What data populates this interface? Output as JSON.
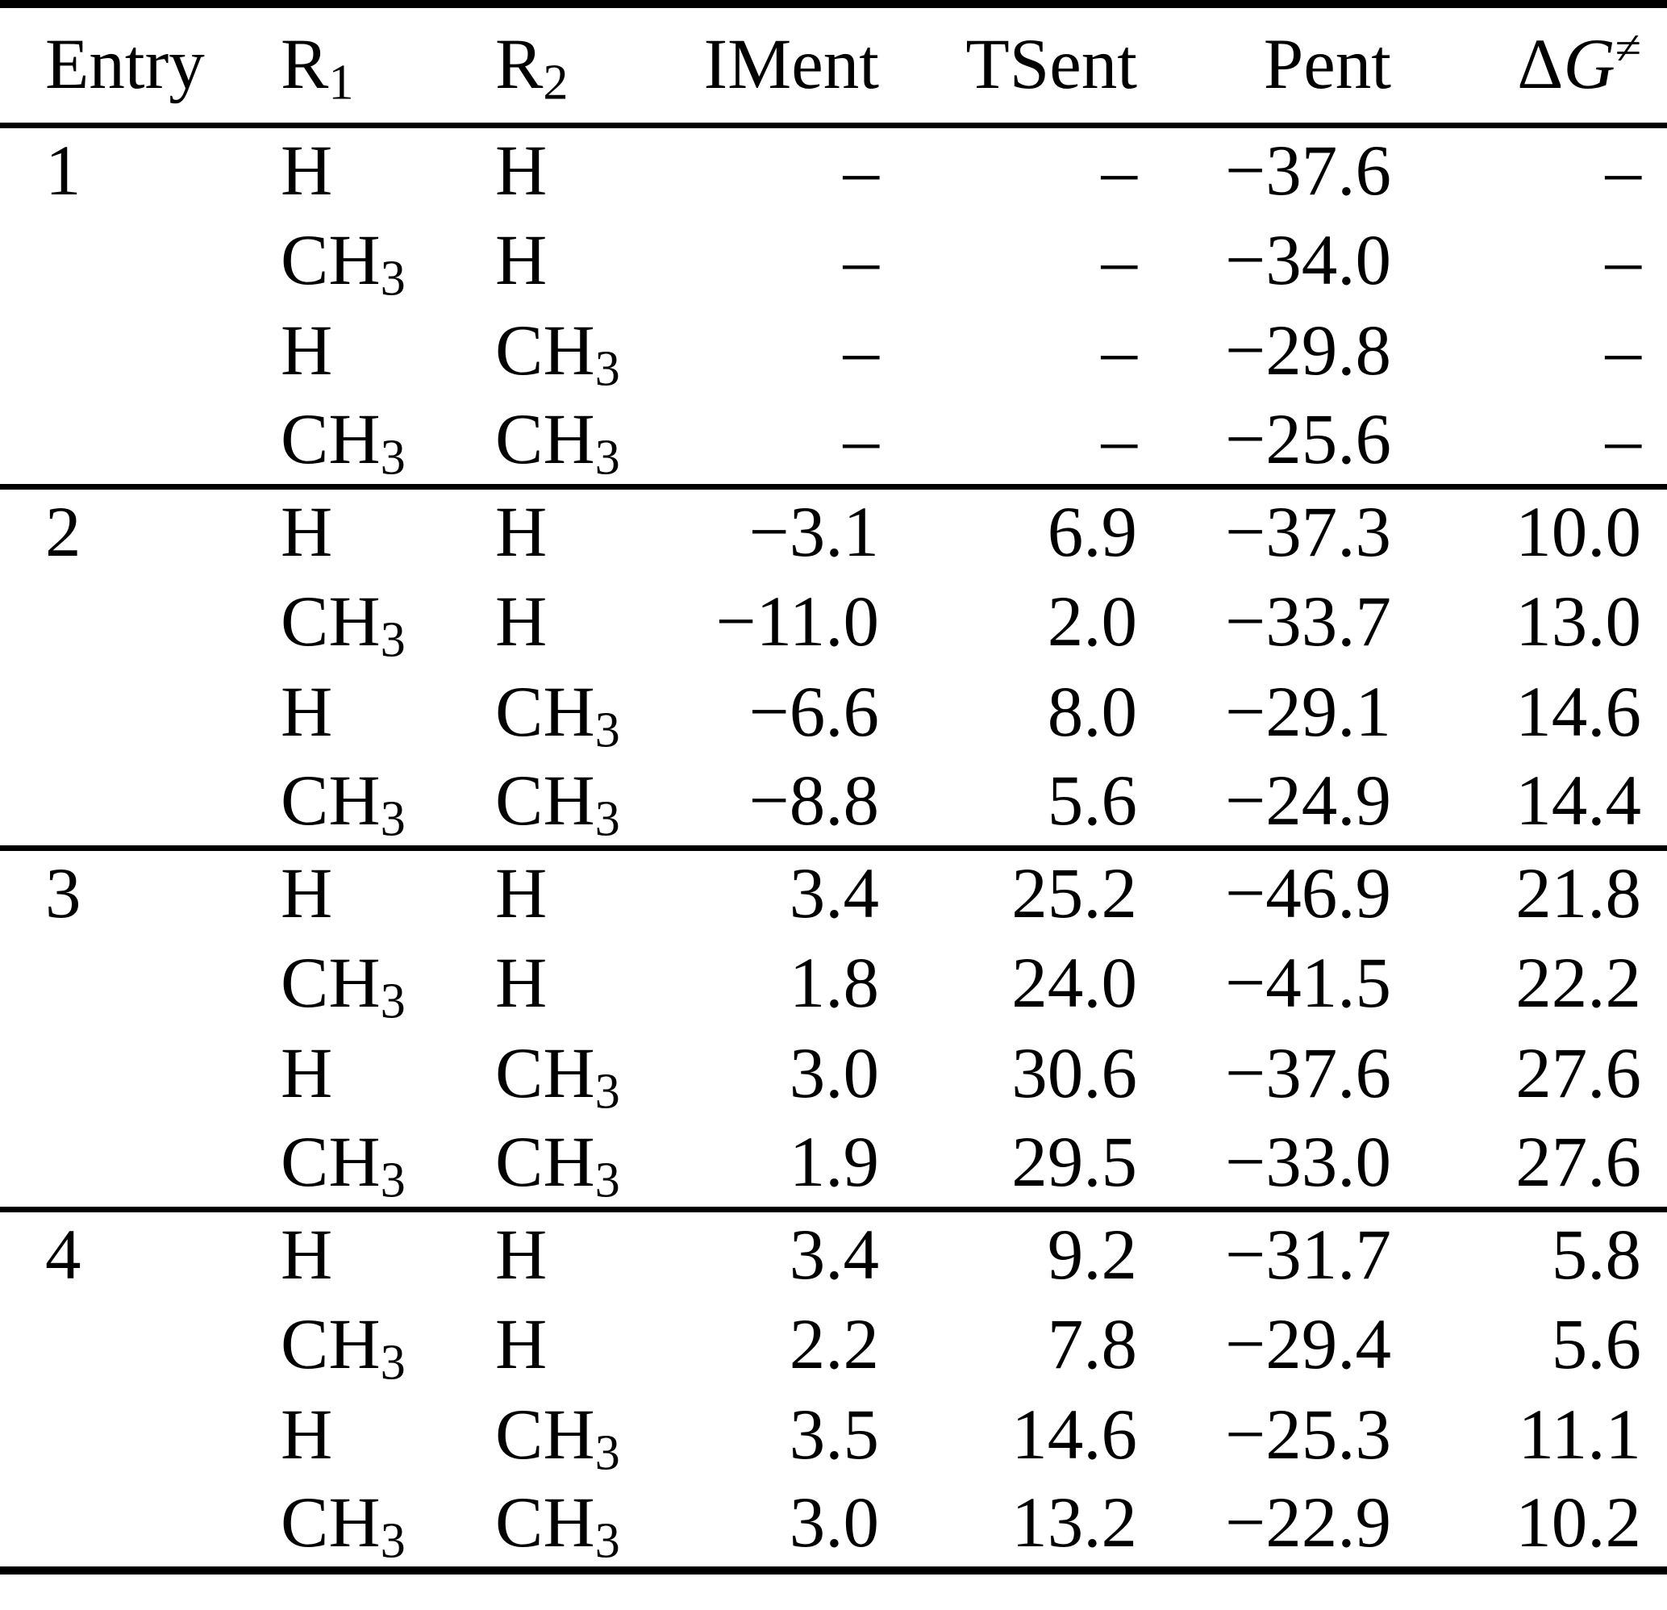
{
  "colors": {
    "text": "#000000",
    "background": "#ffffff",
    "rule": "#000000"
  },
  "table": {
    "columns": [
      {
        "key": "entry",
        "label": "Entry",
        "align": "left"
      },
      {
        "key": "r1",
        "label": "R_1",
        "align": "left"
      },
      {
        "key": "r2",
        "label": "R_2",
        "align": "left"
      },
      {
        "key": "iment",
        "label": "IMent",
        "align": "right"
      },
      {
        "key": "tsent",
        "label": "TSent",
        "align": "right"
      },
      {
        "key": "pent",
        "label": "Pent",
        "align": "right"
      },
      {
        "key": "dg",
        "label": "Δ*G*^≠",
        "align": "right"
      }
    ],
    "groups": [
      {
        "entry": "1",
        "rows": [
          {
            "r1": "H",
            "r2": "H",
            "iment": "–",
            "tsent": "–",
            "pent": "−37.6",
            "dg": "–"
          },
          {
            "r1": "CH_3",
            "r2": "H",
            "iment": "–",
            "tsent": "–",
            "pent": "−34.0",
            "dg": "–"
          },
          {
            "r1": "H",
            "r2": "CH_3",
            "iment": "–",
            "tsent": "–",
            "pent": "−29.8",
            "dg": "–"
          },
          {
            "r1": "CH_3",
            "r2": "CH_3",
            "iment": "–",
            "tsent": "–",
            "pent": "−25.6",
            "dg": "–"
          }
        ]
      },
      {
        "entry": "2",
        "rows": [
          {
            "r1": "H",
            "r2": "H",
            "iment": "−3.1",
            "tsent": "6.9",
            "pent": "−37.3",
            "dg": "10.0"
          },
          {
            "r1": "CH_3",
            "r2": "H",
            "iment": "−11.0",
            "tsent": "2.0",
            "pent": "−33.7",
            "dg": "13.0"
          },
          {
            "r1": "H",
            "r2": "CH_3",
            "iment": "−6.6",
            "tsent": "8.0",
            "pent": "−29.1",
            "dg": "14.6"
          },
          {
            "r1": "CH_3",
            "r2": "CH_3",
            "iment": "−8.8",
            "tsent": "5.6",
            "pent": "−24.9",
            "dg": "14.4"
          }
        ]
      },
      {
        "entry": "3",
        "rows": [
          {
            "r1": "H",
            "r2": "H",
            "iment": "3.4",
            "tsent": "25.2",
            "pent": "−46.9",
            "dg": "21.8"
          },
          {
            "r1": "CH_3",
            "r2": "H",
            "iment": "1.8",
            "tsent": "24.0",
            "pent": "−41.5",
            "dg": "22.2"
          },
          {
            "r1": "H",
            "r2": "CH_3",
            "iment": "3.0",
            "tsent": "30.6",
            "pent": "−37.6",
            "dg": "27.6"
          },
          {
            "r1": "CH_3",
            "r2": "CH_3",
            "iment": "1.9",
            "tsent": "29.5",
            "pent": "−33.0",
            "dg": "27.6"
          }
        ]
      },
      {
        "entry": "4",
        "rows": [
          {
            "r1": "H",
            "r2": "H",
            "iment": "3.4",
            "tsent": "9.2",
            "pent": "−31.7",
            "dg": "5.8"
          },
          {
            "r1": "CH_3",
            "r2": "H",
            "iment": "2.2",
            "tsent": "7.8",
            "pent": "−29.4",
            "dg": "5.6"
          },
          {
            "r1": "H",
            "r2": "CH_3",
            "iment": "3.5",
            "tsent": "14.6",
            "pent": "−25.3",
            "dg": "11.1"
          },
          {
            "r1": "CH_3",
            "r2": "CH_3",
            "iment": "3.0",
            "tsent": "13.2",
            "pent": "−22.9",
            "dg": "10.2"
          }
        ]
      }
    ]
  }
}
